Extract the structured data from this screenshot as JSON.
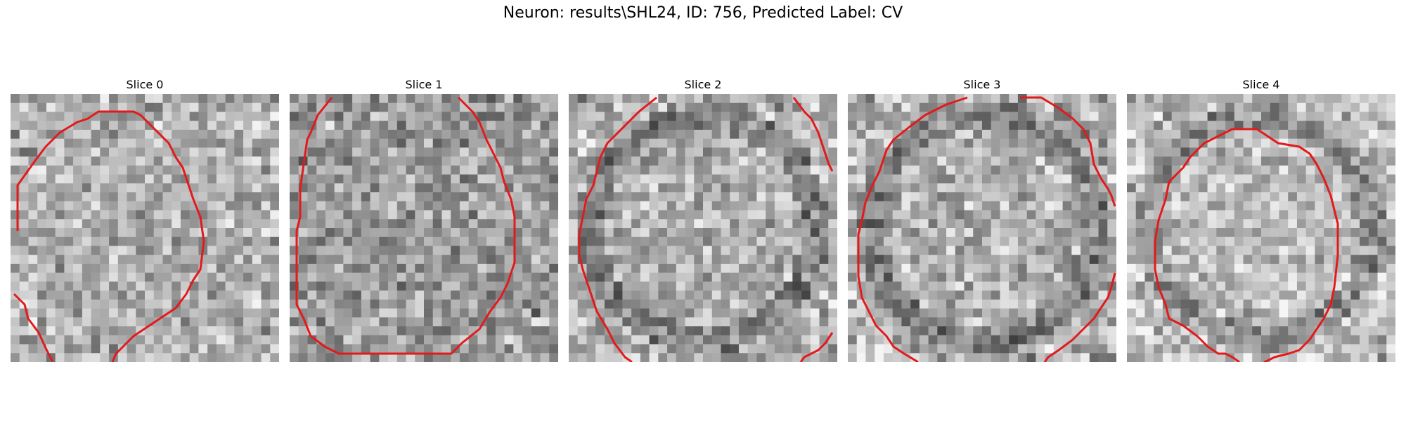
{
  "figure": {
    "title": "Neuron: results\\SHL24, ID: 756, Predicted Label: CV"
  },
  "slices": [
    {
      "title": "Slice 0",
      "seed": 11,
      "contrast": "medium"
    },
    {
      "title": "Slice 1",
      "seed": 23,
      "contrast": "dark"
    },
    {
      "title": "Slice 2",
      "seed": 37,
      "contrast": "ring"
    },
    {
      "title": "Slice 3",
      "seed": 41,
      "contrast": "ring"
    },
    {
      "title": "Slice 4",
      "seed": 53,
      "contrast": "bright"
    }
  ],
  "colors": {
    "contour": "#e31a1c",
    "background": "#ffffff"
  }
}
